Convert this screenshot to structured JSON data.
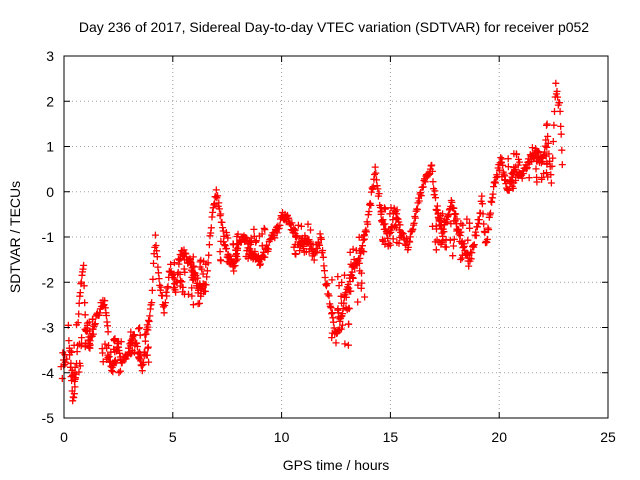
{
  "chart_data": {
    "type": "scatter",
    "title": "Day 236 of 2017, Sidereal Day-to-day VTEC variation (SDTVAR) for receiver p052",
    "xlabel": "GPS time / hours",
    "ylabel": "SDTVAR / TECUs",
    "xlim": [
      0,
      25
    ],
    "ylim": [
      -5,
      3
    ],
    "xticks": [
      0,
      5,
      10,
      15,
      20,
      25
    ],
    "yticks": [
      -5,
      -4,
      -3,
      -2,
      -1,
      0,
      1,
      2,
      3
    ],
    "x_tick_labels": [
      "0",
      "5",
      "10",
      "15",
      "20",
      "25"
    ],
    "y_tick_labels": [
      "-5",
      "-4",
      "-3",
      "-2",
      "-1",
      "0",
      "1",
      "2",
      "3"
    ],
    "grid": true,
    "marker": "+",
    "color": "#ff0000",
    "series": [
      {
        "name": "SDTVAR",
        "trace": [
          [
            0.2,
            -3.0
          ],
          [
            0.3,
            -3.8
          ],
          [
            0.4,
            -4.7
          ],
          [
            0.5,
            -4.3
          ],
          [
            0.6,
            -3.6
          ],
          [
            0.7,
            -2.4
          ],
          [
            0.8,
            -2.0
          ],
          [
            0.9,
            -1.7
          ],
          [
            1.0,
            -3.0
          ],
          [
            1.2,
            -3.3
          ],
          [
            1.5,
            -2.8
          ],
          [
            1.7,
            -2.5
          ],
          [
            1.9,
            -2.5
          ],
          [
            2.0,
            -2.9
          ],
          [
            2.1,
            -3.8
          ],
          [
            2.3,
            -3.9
          ],
          [
            2.5,
            -3.4
          ],
          [
            2.7,
            -3.8
          ],
          [
            3.0,
            -3.5
          ],
          [
            3.2,
            -3.2
          ],
          [
            3.4,
            -3.5
          ],
          [
            3.6,
            -3.9
          ],
          [
            3.8,
            -3.1
          ],
          [
            4.0,
            -2.6
          ],
          [
            4.2,
            -1.0
          ],
          [
            4.4,
            -2.0
          ],
          [
            4.6,
            -2.6
          ],
          [
            4.9,
            -1.6
          ],
          [
            5.1,
            -2.2
          ],
          [
            5.4,
            -1.3
          ],
          [
            5.8,
            -1.6
          ],
          [
            6.0,
            -1.9
          ],
          [
            6.3,
            -2.2
          ],
          [
            6.5,
            -2.1
          ],
          [
            6.8,
            -0.6
          ],
          [
            7.0,
            0.0
          ],
          [
            7.2,
            -0.6
          ],
          [
            7.5,
            -1.4
          ],
          [
            7.8,
            -1.7
          ],
          [
            8.0,
            -1.2
          ],
          [
            8.3,
            -1.0
          ],
          [
            8.6,
            -1.4
          ],
          [
            9.0,
            -1.6
          ],
          [
            9.4,
            -1.2
          ],
          [
            9.8,
            -0.8
          ],
          [
            10.1,
            -0.5
          ],
          [
            10.5,
            -0.8
          ],
          [
            10.8,
            -1.2
          ],
          [
            11.2,
            -1.1
          ],
          [
            11.5,
            -1.4
          ],
          [
            11.8,
            -1.0
          ],
          [
            12.0,
            -1.9
          ],
          [
            12.3,
            -2.6
          ],
          [
            12.5,
            -3.3
          ],
          [
            12.8,
            -2.6
          ],
          [
            13.0,
            -2.2
          ],
          [
            13.3,
            -1.6
          ],
          [
            13.6,
            -1.5
          ],
          [
            13.9,
            -0.8
          ],
          [
            14.1,
            -0.2
          ],
          [
            14.3,
            0.5
          ],
          [
            14.6,
            -0.5
          ],
          [
            14.9,
            -1.1
          ],
          [
            15.2,
            -0.4
          ],
          [
            15.5,
            -0.9
          ],
          [
            15.8,
            -1.2
          ],
          [
            16.0,
            -0.8
          ],
          [
            16.3,
            -0.2
          ],
          [
            16.6,
            0.3
          ],
          [
            16.9,
            0.5
          ],
          [
            17.1,
            -0.3
          ],
          [
            17.4,
            -0.9
          ],
          [
            17.8,
            -0.3
          ],
          [
            18.0,
            -0.6
          ],
          [
            18.3,
            -1.1
          ],
          [
            18.6,
            -1.6
          ],
          [
            18.8,
            -1.2
          ],
          [
            19.0,
            -0.8
          ],
          [
            19.2,
            -0.2
          ],
          [
            19.4,
            -1.2
          ],
          [
            19.6,
            -0.4
          ],
          [
            19.8,
            0.2
          ],
          [
            20.1,
            0.7
          ],
          [
            20.4,
            0.0
          ],
          [
            20.7,
            0.5
          ],
          [
            21.0,
            0.3
          ],
          [
            21.4,
            0.7
          ],
          [
            21.7,
            0.9
          ],
          [
            22.0,
            0.6
          ],
          [
            22.2,
            1.5
          ],
          [
            22.4,
            0.2
          ],
          [
            22.6,
            2.3
          ],
          [
            22.8,
            1.8
          ],
          [
            22.9,
            0.6
          ]
        ],
        "bands": [
          [
            0.3,
            -4.2,
            -3.5
          ],
          [
            0.9,
            -3.5,
            -2.8
          ],
          [
            2.2,
            -4.0,
            -3.2
          ],
          [
            3.5,
            -3.8,
            -3.0
          ],
          [
            5.5,
            -2.3,
            -1.3
          ],
          [
            6.2,
            -2.5,
            -1.5
          ],
          [
            7.6,
            -1.6,
            -0.9
          ],
          [
            8.8,
            -1.6,
            -0.8
          ],
          [
            11.0,
            -1.4,
            -0.7
          ],
          [
            12.7,
            -3.4,
            -1.8
          ],
          [
            13.5,
            -2.6,
            -1.0
          ],
          [
            15.0,
            -1.2,
            -0.3
          ],
          [
            17.2,
            -1.3,
            -0.4
          ],
          [
            18.2,
            -1.5,
            -0.6
          ],
          [
            20.5,
            0.0,
            0.9
          ],
          [
            21.8,
            0.2,
            1.0
          ]
        ]
      }
    ]
  }
}
